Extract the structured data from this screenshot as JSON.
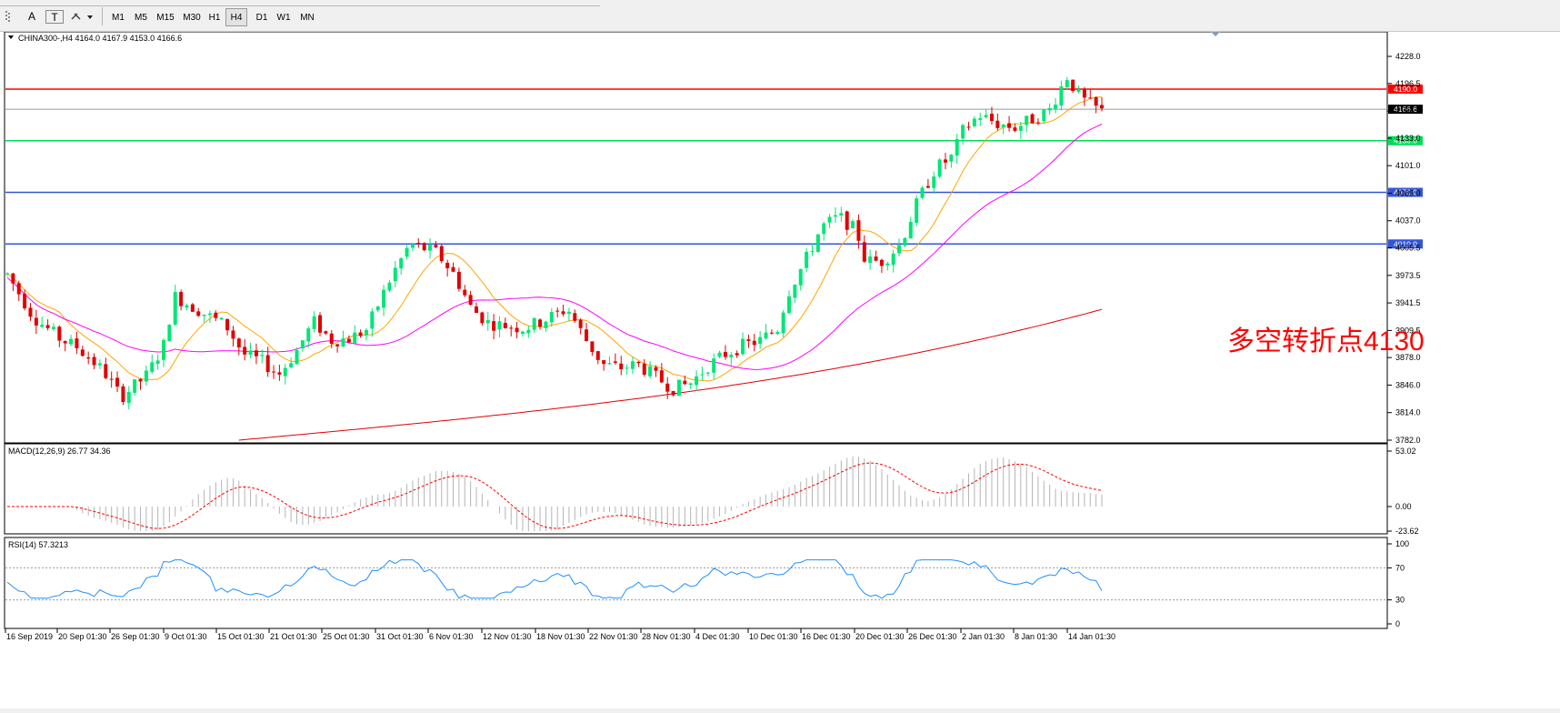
{
  "toolbar": {
    "tools": [
      {
        "name": "crosshair-tool-button",
        "label": ""
      },
      {
        "name": "text-tool-button",
        "label": "A"
      },
      {
        "name": "text-label-tool-button",
        "label": "T"
      },
      {
        "name": "shapes-dropdown-button",
        "label": ""
      }
    ],
    "timeframes": [
      "M1",
      "M5",
      "M15",
      "M30",
      "H1",
      "H4",
      "D1",
      "W1",
      "MN"
    ],
    "active_timeframe": "H4"
  },
  "chart": {
    "header": "CHINA300-,H4  4164.0 4167.9 4153.0 4166.6",
    "annotation": "多空转折点4130",
    "price_ticks": [
      "4228.0",
      "4196.5",
      "4164.5",
      "4133.0",
      "4101.0",
      "4069.0",
      "4037.0",
      "4005.5",
      "3973.5",
      "3941.5",
      "3909.5",
      "3878.0",
      "3846.0",
      "3814.0",
      "3782.0"
    ],
    "horizontal_lines": [
      {
        "label": "4190.0",
        "color": "#ff0000"
      },
      {
        "label": "4166.6",
        "color": "#000000"
      },
      {
        "label": "4130.0",
        "color": "#00dd55"
      },
      {
        "label": "4070.0",
        "color": "#3355dd"
      },
      {
        "label": "4010.0",
        "color": "#3355dd"
      }
    ],
    "time_labels": [
      "16 Sep 2019",
      "20 Sep 01:30",
      "26 Sep 01:30",
      "9 Oct 01:30",
      "15 Oct 01:30",
      "21 Oct 01:30",
      "25 Oct 01:30",
      "31 Oct 01:30",
      "6 Nov 01:30",
      "12 Nov 01:30",
      "18 Nov 01:30",
      "22 Nov 01:30",
      "28 Nov 01:30",
      "4 Dec 01:30",
      "10 Dec 01:30",
      "16 Dec 01:30",
      "20 Dec 01:30",
      "26 Dec 01:30",
      "2 Jan 01:30",
      "8 Jan 01:30",
      "14 Jan 01:30"
    ],
    "colors": {
      "bull": "#00e676",
      "bear": "#e00000",
      "ma_fast": "#ffa500",
      "ma_mid": "#ff00ff",
      "ma_slow": "#e00000",
      "annotation": "#ff0000"
    }
  },
  "macd": {
    "header": "MACD(12,26,9) 26.77 34.36",
    "ticks": [
      "53.02",
      "0.00",
      "-23.62"
    ],
    "signal_color": "#ff0000",
    "hist_color": "#b4b4b4"
  },
  "rsi": {
    "header": "RSI(14) 57.3213",
    "ticks": [
      "100",
      "70",
      "30",
      "0"
    ],
    "line_color": "#1e90ff"
  }
}
